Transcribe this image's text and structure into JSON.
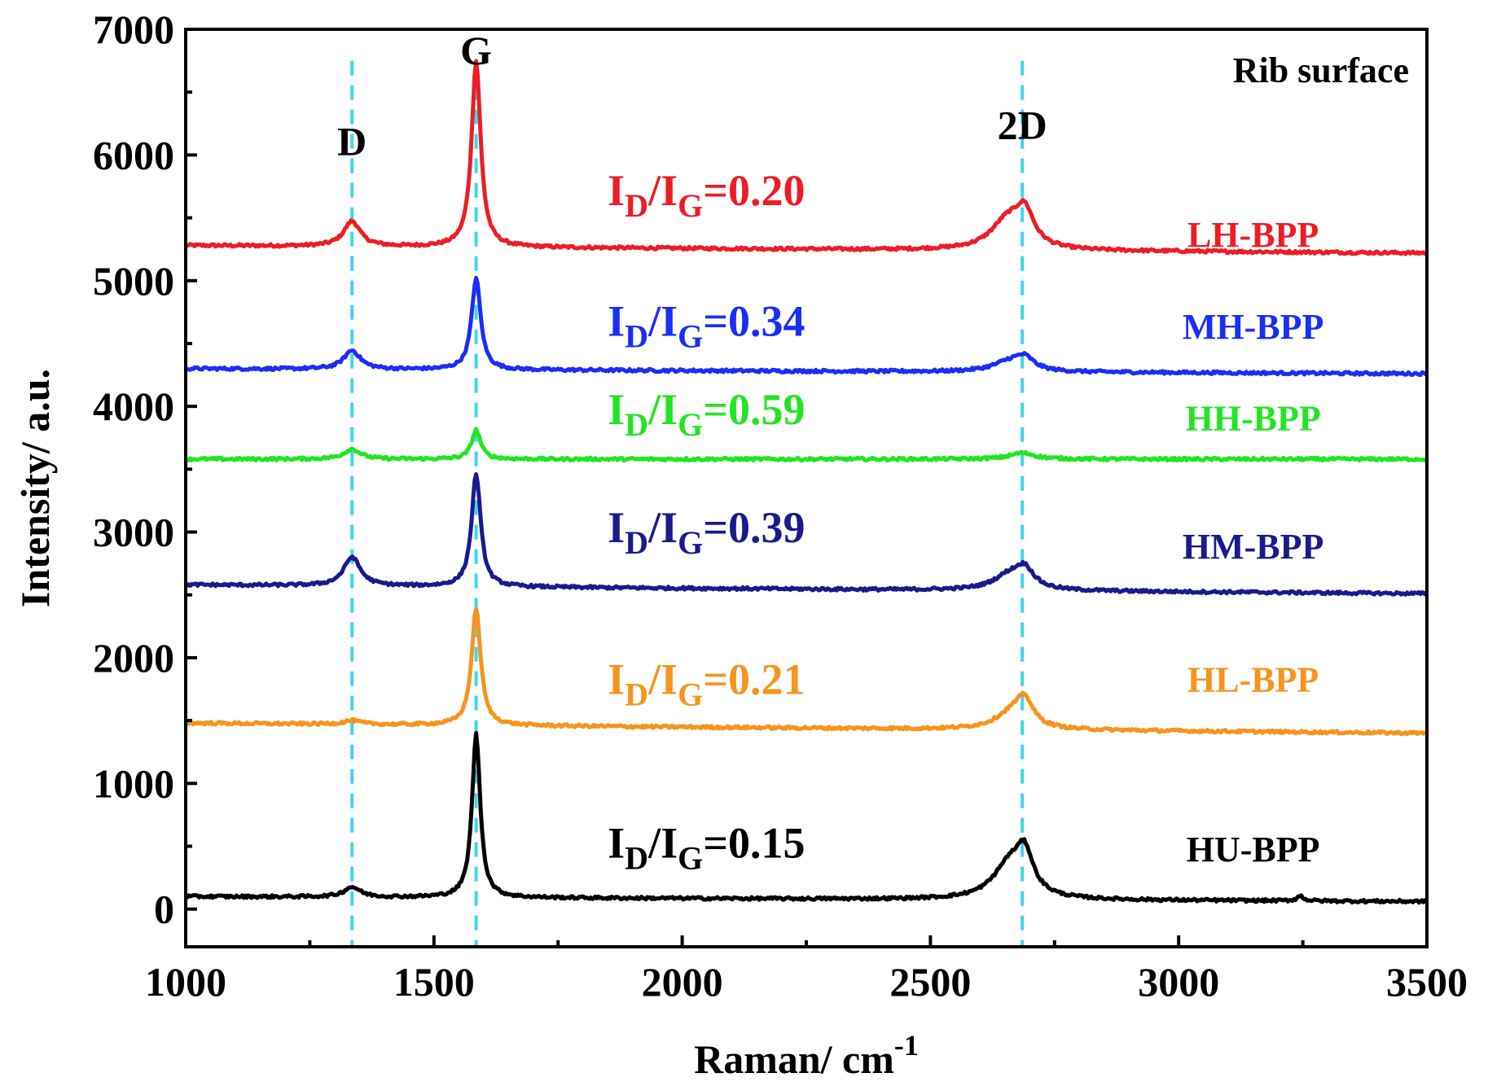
{
  "chart_data": {
    "type": "line",
    "title": "",
    "xlabel": "Raman/ cm",
    "xlabel_superscript": "-1",
    "ylabel": "Intensity/ a.u.",
    "xlim": [
      1000,
      3500
    ],
    "ylim": [
      -300,
      7000
    ],
    "x_ticks": [
      1000,
      1500,
      2000,
      2500,
      3000,
      3500
    ],
    "x_tick_labels": [
      "1000",
      "1500",
      "2000",
      "2500",
      "3000",
      "3500"
    ],
    "y_ticks": [
      0,
      1000,
      2000,
      3000,
      4000,
      5000,
      6000,
      7000
    ],
    "y_tick_labels": [
      "0",
      "1000",
      "2000",
      "3000",
      "4000",
      "5000",
      "6000",
      "7000"
    ],
    "grid": false,
    "legend": "none",
    "corner_label": "Rib surface",
    "peaks": [
      {
        "label": "D",
        "x": 1335
      },
      {
        "label": "G",
        "x": 1585
      },
      {
        "label": "2D",
        "x": 2685
      }
    ],
    "peak_marker_color": "#3ed6ee",
    "ratio_prefix_main": "I",
    "ratio_prefix_sub1": "D",
    "ratio_slash_main": "/I",
    "ratio_prefix_sub2": "G",
    "series": [
      {
        "name": "LH-BPP",
        "color": "#ee1c25",
        "ratio_text": "=0.20",
        "ratio_label_pos": [
          1850,
          5600
        ],
        "name_label_pos": [
          3150,
          5270
        ],
        "baseline_start": 5280,
        "baseline_end": 5220,
        "peaks": [
          {
            "x": 1335,
            "height": 200,
            "width": 20
          },
          {
            "x": 1585,
            "height": 1480,
            "width": 11
          },
          {
            "x": 2655,
            "height": 230,
            "width": 40
          },
          {
            "x": 2690,
            "height": 260,
            "width": 22
          }
        ]
      },
      {
        "name": "MH-BPP",
        "color": "#1a2ef5",
        "ratio_text": "=0.34",
        "ratio_label_pos": [
          1850,
          4560
        ],
        "name_label_pos": [
          3150,
          4540
        ],
        "baseline_start": 4300,
        "baseline_end": 4260,
        "peaks": [
          {
            "x": 1335,
            "height": 150,
            "width": 20
          },
          {
            "x": 1585,
            "height": 730,
            "width": 11
          },
          {
            "x": 2660,
            "height": 80,
            "width": 40
          },
          {
            "x": 2690,
            "height": 90,
            "width": 22
          }
        ]
      },
      {
        "name": "HH-BPP",
        "color": "#22e522",
        "ratio_text": "=0.59",
        "ratio_label_pos": [
          1850,
          3860
        ],
        "name_label_pos": [
          3150,
          3810
        ],
        "baseline_start": 3580,
        "baseline_end": 3580,
        "peaks": [
          {
            "x": 1335,
            "height": 80,
            "width": 20
          },
          {
            "x": 1585,
            "height": 230,
            "width": 11
          },
          {
            "x": 2685,
            "height": 50,
            "width": 30
          }
        ]
      },
      {
        "name": "HM-BPP",
        "color": "#1a1a8c",
        "ratio_text": "=0.39",
        "ratio_label_pos": [
          1850,
          3600
        ],
        "name_label_pos": [
          3150,
          2790
        ],
        "baseline_start": 2580,
        "baseline_end": 2510,
        "peaks": [
          {
            "x": 1335,
            "height": 230,
            "width": 20
          },
          {
            "x": 1585,
            "height": 900,
            "width": 11
          },
          {
            "x": 2660,
            "height": 120,
            "width": 40
          },
          {
            "x": 2690,
            "height": 140,
            "width": 22
          }
        ]
      },
      {
        "name": "HL-BPP",
        "color": "#f7941d",
        "ratio_text": "=0.21",
        "ratio_label_pos": [
          1850,
          1710
        ],
        "name_label_pos": [
          3150,
          1730
        ],
        "baseline_start": 1480,
        "baseline_end": 1400,
        "peaks": [
          {
            "x": 1335,
            "height": 30,
            "width": 20
          },
          {
            "x": 1585,
            "height": 930,
            "width": 11
          },
          {
            "x": 2665,
            "height": 130,
            "width": 40
          },
          {
            "x": 2690,
            "height": 190,
            "width": 20
          }
        ]
      },
      {
        "name": "HU-BPP",
        "color": "#000000",
        "ratio_text": "=0.15",
        "ratio_label_pos": [
          1850,
          410
        ],
        "name_label_pos": [
          3150,
          380
        ],
        "baseline_start": 100,
        "baseline_end": 60,
        "peaks": [
          {
            "x": 1335,
            "height": 80,
            "width": 20
          },
          {
            "x": 1585,
            "height": 1300,
            "width": 10
          },
          {
            "x": 2660,
            "height": 280,
            "width": 40
          },
          {
            "x": 2690,
            "height": 290,
            "width": 20
          },
          {
            "x": 3245,
            "height": 40,
            "width": 8
          }
        ]
      }
    ]
  }
}
